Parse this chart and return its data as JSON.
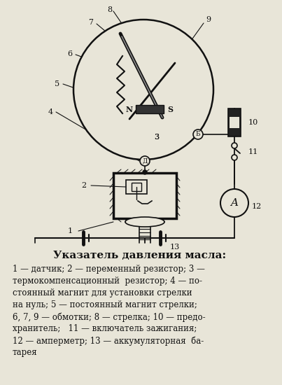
{
  "title": "Указатель давления масла:",
  "caption_lines": [
    "1 — датчик; 2 — переменный резистор; 3 —",
    "термокомпенсационный  резистор; 4 — по-",
    "стоянный магнит для установки стрелки",
    "на нуль; 5 — постоянный магнит стрелки;",
    "6, 7, 9 — обмотки; 8 — стрелка; 10 — предо-",
    "хранитель;   11 — включатель зажигания;",
    "12 — амперметр; 13 — аккумуляторная  ба-",
    "тарея"
  ],
  "bg_color": "#e8e5d8",
  "line_color": "#111111",
  "figure_width": 4.03,
  "figure_height": 5.5,
  "dpi": 100
}
